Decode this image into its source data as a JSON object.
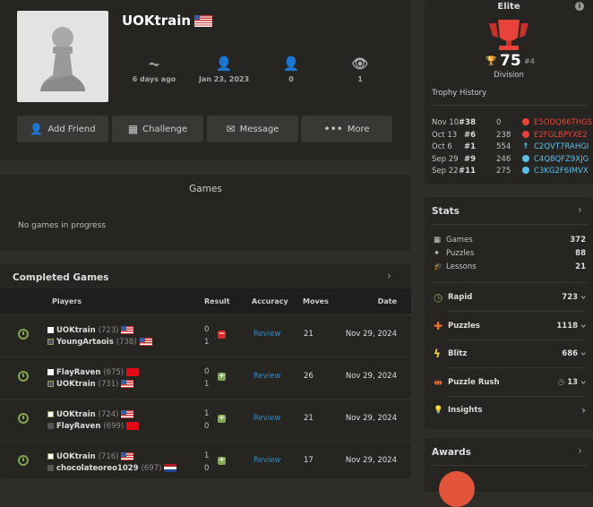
{
  "profile": {
    "username": "UOKtrain",
    "flag": "us",
    "stats": [
      {
        "icon": "activity-icon",
        "value": "6 days ago"
      },
      {
        "icon": "user-joined-icon",
        "value": "Jan 23, 2023"
      },
      {
        "icon": "followers-icon",
        "value": "0"
      },
      {
        "icon": "views-icon",
        "value": "1"
      }
    ],
    "buttons": [
      {
        "icon": "add-friend-icon",
        "label": "Add Friend"
      },
      {
        "icon": "challenge-icon",
        "label": "Challenge"
      },
      {
        "icon": "message-icon",
        "label": "Message"
      },
      {
        "icon": "more-icon",
        "label": "More"
      }
    ]
  },
  "games": {
    "title": "Games",
    "empty": "No games in progress"
  },
  "completed": {
    "title": "Completed Games",
    "headers": {
      "players": "Players",
      "result": "Result",
      "accuracy": "Accuracy",
      "moves": "Moves",
      "date": "Date"
    },
    "rows": [
      {
        "p1": {
          "name": "UOKtrain",
          "rating": "(723)",
          "flag": "us",
          "color": "white"
        },
        "p2": {
          "name": "YoungArtaois",
          "rating": "(738)",
          "flag": "us",
          "color": "black"
        },
        "s1": "0",
        "s2": "1",
        "result": "loss",
        "accuracy": "Review",
        "moves": "21",
        "date": "Nov 29, 2024",
        "win_user": 2
      },
      {
        "p1": {
          "name": "FlayRaven",
          "rating": "(675)",
          "flag": "tr",
          "color": "white"
        },
        "p2": {
          "name": "UOKtrain",
          "rating": "(731)",
          "flag": "us",
          "color": "black"
        },
        "s1": "0",
        "s2": "1",
        "result": "win",
        "accuracy": "Review",
        "moves": "26",
        "date": "Nov 29, 2024",
        "win_user": 2
      },
      {
        "p1": {
          "name": "UOKtrain",
          "rating": "(724)",
          "flag": "us",
          "color": "white"
        },
        "p2": {
          "name": "FlayRaven",
          "rating": "(699)",
          "flag": "tr",
          "color": "black"
        },
        "s1": "1",
        "s2": "0",
        "result": "win",
        "accuracy": "Review",
        "moves": "21",
        "date": "Nov 29, 2024",
        "win_user": 1
      },
      {
        "p1": {
          "name": "UOKtrain",
          "rating": "(716)",
          "flag": "us",
          "color": "white"
        },
        "p2": {
          "name": "chocolateoreo1029",
          "rating": "(697)",
          "flag": "nl",
          "color": "black"
        },
        "s1": "1",
        "s2": "0",
        "result": "win",
        "accuracy": "Review",
        "moves": "17",
        "date": "Nov 29, 2024",
        "win_user": 1
      }
    ]
  },
  "league": {
    "title": "Elite",
    "trophies": "75",
    "rank": "#4",
    "division": "Division",
    "history_title": "Trophy History",
    "history": [
      {
        "date": "Nov 10",
        "rank": "#38",
        "trophies": "0",
        "status": "red",
        "code": "E5ODQ66THGS"
      },
      {
        "date": "Oct 13",
        "rank": "#6",
        "trophies": "238",
        "status": "red",
        "code": "E2FGLBPYXE2"
      },
      {
        "date": "Oct 6",
        "rank": "#1",
        "trophies": "554",
        "status": "up",
        "code": "C2QVT7RAHGI"
      },
      {
        "date": "Sep 29",
        "rank": "#9",
        "trophies": "246",
        "status": "blue",
        "code": "C4Q8QFZ9XJG"
      },
      {
        "date": "Sep 22",
        "rank": "#11",
        "trophies": "275",
        "status": "blue",
        "code": "C3KG2F6IMVX"
      }
    ]
  },
  "stats": {
    "title": "Stats",
    "summary": [
      {
        "icon": "board-icon",
        "label": "Games",
        "value": "372"
      },
      {
        "icon": "puzzle-piece-icon",
        "label": "Puzzles",
        "value": "88"
      },
      {
        "icon": "graduation-cap-icon",
        "label": "Lessons",
        "value": "21"
      }
    ],
    "ratings": [
      {
        "icon": "rapid-clock-icon",
        "label": "Rapid",
        "value": "723",
        "color": "#7fa650"
      },
      {
        "icon": "puzzle-icon",
        "label": "Puzzles",
        "value": "1118",
        "color": "#f1702c"
      },
      {
        "icon": "blitz-bolt-icon",
        "label": "Blitz",
        "value": "686",
        "color": "#fad541"
      },
      {
        "icon": "puzzle-rush-icon",
        "label": "Puzzle Rush",
        "value": "13",
        "color": "#f1702c"
      }
    ],
    "insights": "Insights"
  },
  "awards": {
    "title": "Awards"
  }
}
